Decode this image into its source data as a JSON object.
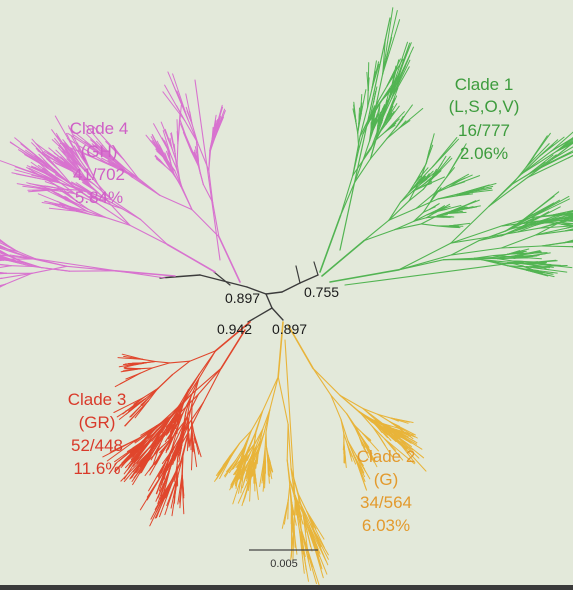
{
  "colors": {
    "clade1": "#52b452",
    "clade2": "#e8b43a",
    "clade3": "#e0462c",
    "clade4": "#d873cf",
    "stem": "#3c3c3c",
    "clade1_text": "#3d9c3d",
    "clade2_text": "#e39a2d",
    "clade3_text": "#d93a2a",
    "clade4_text": "#cf5fc6"
  },
  "clades": [
    {
      "id": "clade1",
      "name": "Clade 1",
      "types": "(L,S,O,V)",
      "ratio": "16/777",
      "percent": "2.06%"
    },
    {
      "id": "clade2",
      "name": "Clade 2",
      "types": "(G)",
      "ratio": "34/564",
      "percent": "6.03%"
    },
    {
      "id": "clade3",
      "name": "Clade 3",
      "types": "(GR)",
      "ratio": "52/448",
      "percent": "11.6%"
    },
    {
      "id": "clade4",
      "name": "Clade 4",
      "types": "(GH)",
      "ratio": "41/702",
      "percent": "5.84%"
    }
  ],
  "bootstrap": {
    "clade4_node": "0.897",
    "clade1_node": "0.755",
    "clade3_node": "0.942",
    "clade2_node": "0.897"
  },
  "scale_bar": {
    "label": "0.005"
  }
}
